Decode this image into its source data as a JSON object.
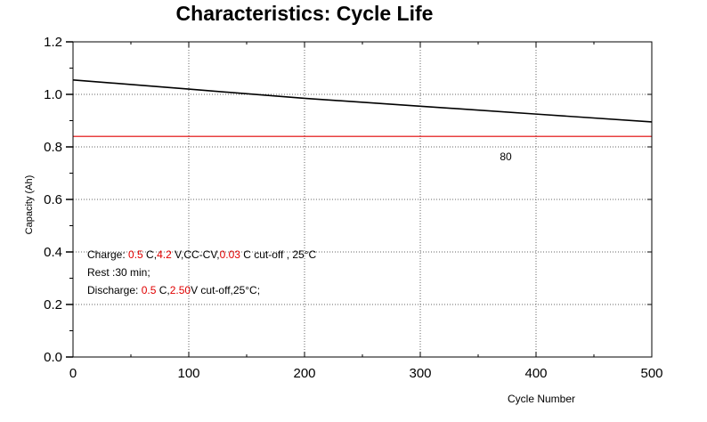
{
  "chart_data": {
    "type": "line",
    "title": "Characteristics: Cycle Life",
    "xlabel": "Cycle Number",
    "ylabel": "Capacity (Ah)",
    "xlim": [
      0,
      500
    ],
    "ylim": [
      0.0,
      1.2
    ],
    "xticks": [
      "0",
      "100",
      "200",
      "300",
      "400",
      "500"
    ],
    "yticks": [
      "0.0",
      "0.2",
      "0.4",
      "0.6",
      "0.8",
      "1.0",
      "1.2"
    ],
    "grid": "dotted",
    "series": [
      {
        "x": [
          0,
          100,
          200,
          300,
          400,
          500
        ],
        "values": [
          1.055,
          1.02,
          0.985,
          0.955,
          0.925,
          0.895
        ],
        "color": "#000000"
      },
      {
        "x": [
          0,
          500
        ],
        "values": [
          0.84,
          0.84
        ],
        "color": "#e00000"
      }
    ],
    "ref_label": "80",
    "annotations": {
      "line1": {
        "p1": "Charge: ",
        "v1": "0.5",
        "p2": " C,",
        "v2": "4.2",
        "p3": " V,CC-CV,",
        "v3": "0.03",
        "p4": " C cut-off , 25°C"
      },
      "line2": "Rest :30 min;",
      "line3": {
        "p1": "Discharge: ",
        "v1": "0.5",
        "p2": " C,",
        "v2": "2.50",
        "p3": "V cut-off,25°C;"
      }
    }
  }
}
